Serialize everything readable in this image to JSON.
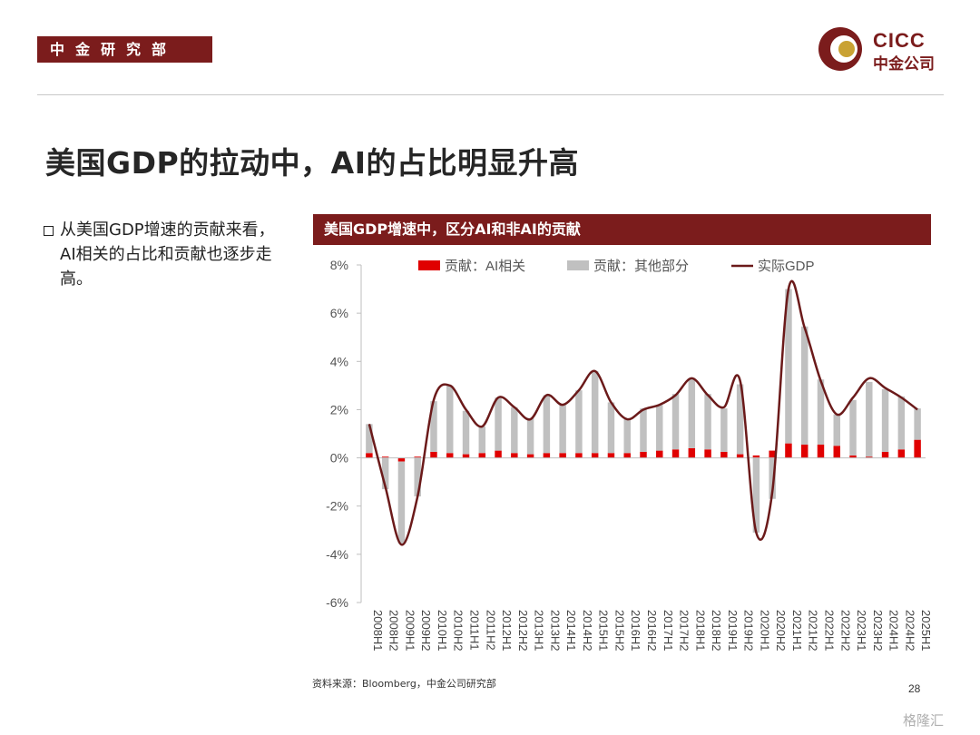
{
  "header": {
    "dept_label": "中金研究部",
    "logo_en": "CICC",
    "logo_cn": "中金公司"
  },
  "slide": {
    "title": "美国GDP的拉动中，AI的占比明显升高",
    "bullet": "从美国GDP增速的贡献来看，AI相关的占比和贡献也逐步走高。",
    "chart_header": "美国GDP增速中，区分AI和非AI的贡献",
    "source": "资料来源：Bloomberg，中金公司研究部",
    "page_number": "28",
    "watermark": "格隆汇"
  },
  "colors": {
    "brand": "#7b1c1c",
    "ai": "#e00000",
    "other": "#c0c0c0",
    "gdp": "#6b1a1a"
  },
  "chart_data": {
    "type": "bar",
    "stacked": true,
    "categories": [
      "2008H1",
      "2008H2",
      "2009H1",
      "2009H2",
      "2010H1",
      "2010H2",
      "2011H1",
      "2011H2",
      "2012H1",
      "2012H2",
      "2013H1",
      "2013H2",
      "2014H1",
      "2014H2",
      "2015H1",
      "2015H2",
      "2016H1",
      "2016H2",
      "2017H1",
      "2017H2",
      "2018H1",
      "2018H2",
      "2019H1",
      "2019H2",
      "2020H1",
      "2020H2",
      "2021H1",
      "2021H2",
      "2022H1",
      "2022H2",
      "2023H1",
      "2023H2",
      "2024H1",
      "2024H2",
      "2025H1"
    ],
    "ylim": [
      -6,
      8
    ],
    "yticks": [
      "8%",
      "6%",
      "4%",
      "2%",
      "0%",
      "-2%",
      "-4%",
      "-6%"
    ],
    "legend_position": "top",
    "series": [
      {
        "name": "贡献：AI相关",
        "type": "bar",
        "values": [
          0.2,
          0.05,
          -0.15,
          0.05,
          0.25,
          0.2,
          0.15,
          0.2,
          0.3,
          0.2,
          0.15,
          0.2,
          0.2,
          0.2,
          0.2,
          0.2,
          0.2,
          0.25,
          0.3,
          0.35,
          0.4,
          0.35,
          0.25,
          0.15,
          0.1,
          0.3,
          0.6,
          0.55,
          0.55,
          0.5,
          0.1,
          0.05,
          0.25,
          0.35,
          0.75
        ]
      },
      {
        "name": "贡献：其他部分",
        "type": "bar",
        "values": [
          1.2,
          -1.3,
          -3.4,
          -1.6,
          2.1,
          2.8,
          1.8,
          1.1,
          2.2,
          1.9,
          1.5,
          2.4,
          2.0,
          2.6,
          3.4,
          2.1,
          1.4,
          1.8,
          1.9,
          2.3,
          2.9,
          2.3,
          1.8,
          2.9,
          -3.1,
          -1.7,
          6.4,
          4.9,
          2.7,
          1.3,
          2.3,
          3.1,
          2.6,
          2.2,
          1.3
        ]
      },
      {
        "name": "实际GDP",
        "type": "line",
        "values": [
          1.4,
          -1.2,
          -3.6,
          -1.6,
          2.4,
          3.0,
          2.0,
          1.3,
          2.5,
          2.1,
          1.6,
          2.6,
          2.2,
          2.8,
          3.6,
          2.3,
          1.6,
          2.0,
          2.2,
          2.6,
          3.3,
          2.6,
          2.1,
          3.2,
          -3.1,
          -1.4,
          7.0,
          5.4,
          3.2,
          1.8,
          2.5,
          3.3,
          2.9,
          2.5,
          2.0
        ]
      }
    ]
  }
}
